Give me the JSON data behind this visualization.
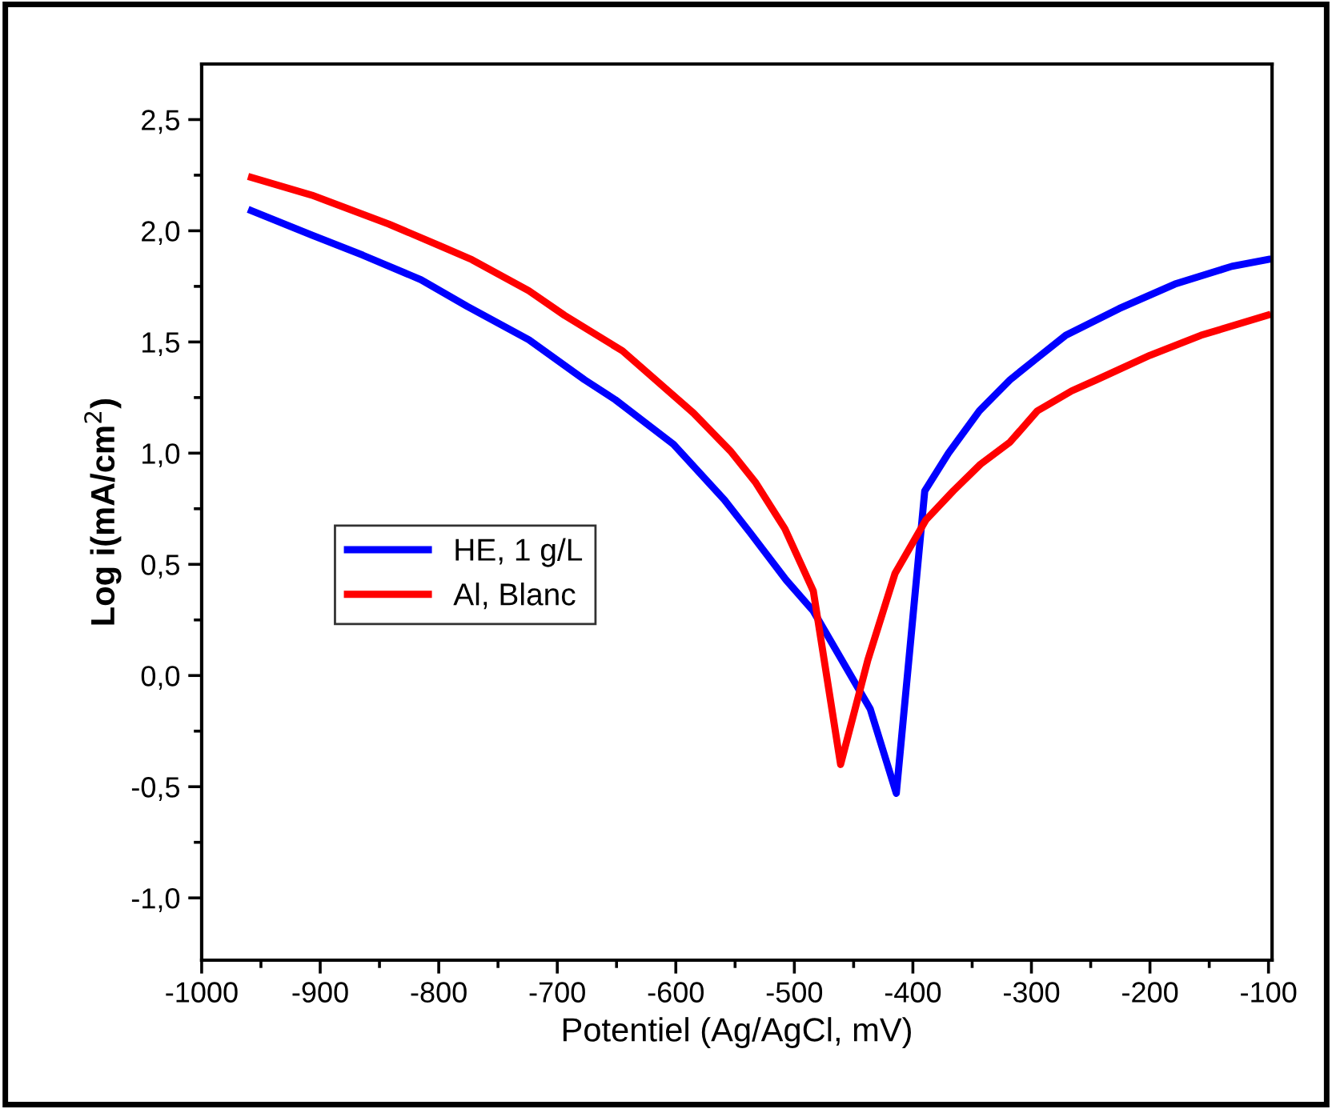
{
  "chart_data": {
    "type": "line",
    "xlabel": "Potentiel (Ag/AgCl, mV)",
    "ylabel": "Log i(mA/cm$^{2}$)",
    "xlim": [
      -1000,
      -97
    ],
    "xticks": [
      -1000,
      -900,
      -800,
      -700,
      -600,
      -500,
      -400,
      -300,
      -200,
      -100
    ],
    "ylim": [
      -1.28,
      2.75
    ],
    "yticks": [
      {
        "value": -1.0,
        "label": "-1,0"
      },
      {
        "value": -0.5,
        "label": "-0,5"
      },
      {
        "value": 0.0,
        "label": "0,0"
      },
      {
        "value": 0.5,
        "label": "0,5"
      },
      {
        "value": 1.0,
        "label": "1,0"
      },
      {
        "value": 1.5,
        "label": "1,5"
      },
      {
        "value": 2.0,
        "label": "2,0"
      },
      {
        "value": 2.5,
        "label": "2,5"
      }
    ],
    "grid": false,
    "legend": "center left",
    "marker": "none",
    "line_style": "solid",
    "series": [
      {
        "name": "HE, 1 g/L",
        "color": "#0000ff",
        "x": [
          -958,
          -907,
          -864,
          -815,
          -776,
          -724,
          -677,
          -651,
          -602,
          -559,
          -537,
          -507,
          -484,
          -436,
          -414,
          -390,
          -370,
          -344,
          -318,
          -297,
          -271,
          -226,
          -179,
          -131,
          -101
        ],
        "values": [
          2.09,
          1.98,
          1.89,
          1.78,
          1.66,
          1.51,
          1.33,
          1.24,
          1.04,
          0.79,
          0.64,
          0.43,
          0.29,
          -0.15,
          -0.53,
          0.83,
          1.0,
          1.19,
          1.33,
          1.42,
          1.53,
          1.65,
          1.76,
          1.84,
          1.87
        ]
      },
      {
        "name": "Al, Blanc",
        "color": "#ff0000",
        "x": [
          -958,
          -907,
          -842,
          -798,
          -772,
          -724,
          -694,
          -645,
          -585,
          -554,
          -533,
          -508,
          -484,
          -461,
          -438,
          -415,
          -389,
          -366,
          -343,
          -318,
          -295,
          -266,
          -245,
          -200,
          -157,
          -101
        ],
        "values": [
          2.24,
          2.16,
          2.03,
          1.93,
          1.87,
          1.73,
          1.62,
          1.46,
          1.18,
          1.01,
          0.87,
          0.66,
          0.38,
          -0.4,
          0.07,
          0.46,
          0.7,
          0.83,
          0.95,
          1.05,
          1.19,
          1.28,
          1.33,
          1.44,
          1.53,
          1.62
        ]
      }
    ]
  }
}
